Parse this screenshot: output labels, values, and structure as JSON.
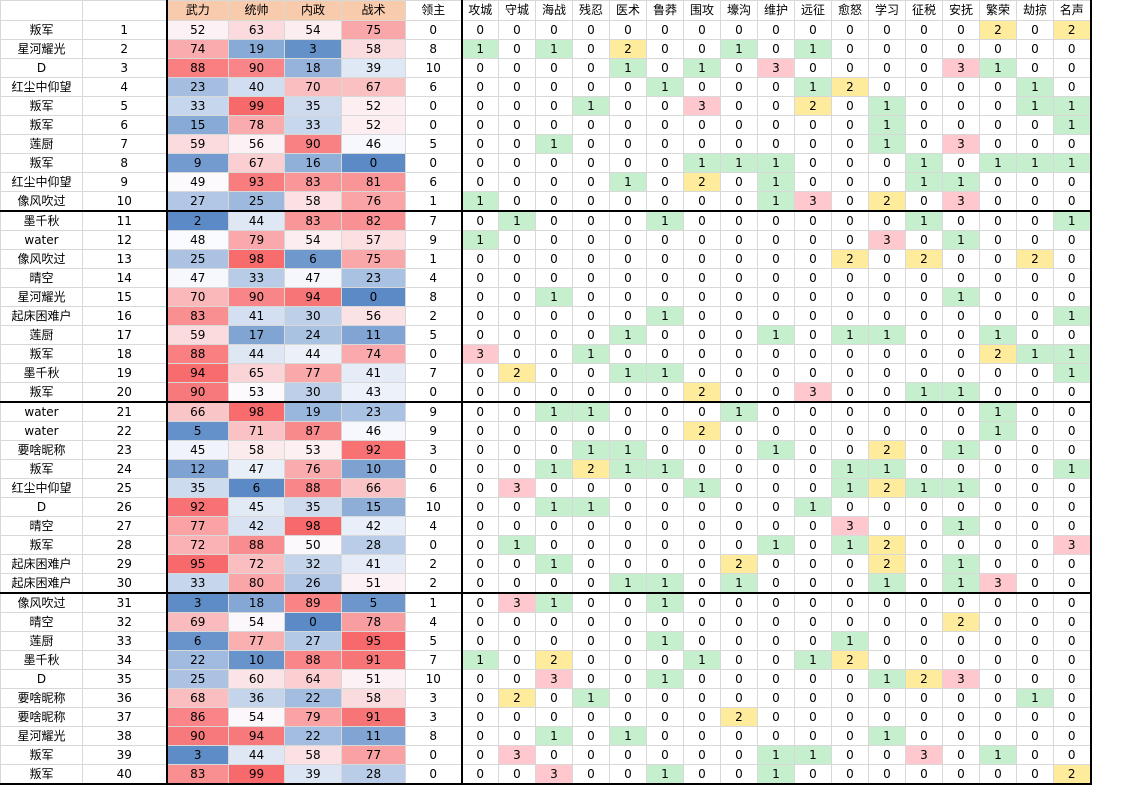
{
  "headers": {
    "name": "",
    "index": "",
    "stats": [
      "武力",
      "统帅",
      "内政",
      "战术",
      "领主"
    ],
    "skills": [
      "攻城",
      "守城",
      "海战",
      "残忍",
      "医术",
      "鲁莽",
      "围攻",
      "壕沟",
      "维护",
      "远征",
      "愈怒",
      "学习",
      "征税",
      "安抚",
      "繁荣",
      "劫掠",
      "名声"
    ]
  },
  "rows": [
    {
      "name": "叛军",
      "idx": 1,
      "stats": [
        52,
        63,
        54,
        75,
        0
      ],
      "skills": [
        0,
        0,
        0,
        0,
        0,
        0,
        0,
        0,
        0,
        0,
        0,
        0,
        0,
        0,
        2,
        0,
        2
      ]
    },
    {
      "name": "星河耀光",
      "idx": 2,
      "stats": [
        74,
        19,
        3,
        58,
        8
      ],
      "skills": [
        1,
        0,
        1,
        0,
        2,
        0,
        0,
        1,
        0,
        1,
        0,
        0,
        0,
        0,
        0,
        0,
        0
      ]
    },
    {
      "name": "D",
      "idx": 3,
      "stats": [
        88,
        90,
        18,
        39,
        10
      ],
      "skills": [
        0,
        0,
        0,
        0,
        1,
        0,
        1,
        0,
        3,
        0,
        0,
        0,
        0,
        3,
        1,
        0,
        0
      ]
    },
    {
      "name": "红尘中仰望",
      "idx": 4,
      "stats": [
        23,
        40,
        70,
        67,
        6
      ],
      "skills": [
        0,
        0,
        0,
        0,
        0,
        1,
        0,
        0,
        0,
        1,
        2,
        0,
        0,
        0,
        0,
        1,
        0
      ]
    },
    {
      "name": "叛军",
      "idx": 5,
      "stats": [
        33,
        99,
        35,
        52,
        0
      ],
      "skills": [
        0,
        0,
        0,
        1,
        0,
        0,
        3,
        0,
        0,
        2,
        0,
        1,
        0,
        0,
        0,
        1,
        1
      ]
    },
    {
      "name": "叛军",
      "idx": 6,
      "stats": [
        15,
        78,
        33,
        52,
        0
      ],
      "skills": [
        0,
        0,
        0,
        0,
        0,
        0,
        0,
        0,
        0,
        0,
        0,
        1,
        0,
        0,
        0,
        0,
        1
      ]
    },
    {
      "name": "莲厨",
      "idx": 7,
      "stats": [
        59,
        56,
        90,
        46,
        5
      ],
      "skills": [
        0,
        0,
        1,
        0,
        0,
        0,
        0,
        0,
        0,
        0,
        0,
        1,
        0,
        3,
        0,
        0,
        0
      ]
    },
    {
      "name": "叛军",
      "idx": 8,
      "stats": [
        9,
        67,
        16,
        0,
        0
      ],
      "skills": [
        0,
        0,
        0,
        0,
        0,
        0,
        1,
        1,
        1,
        0,
        0,
        0,
        1,
        0,
        1,
        1,
        1
      ]
    },
    {
      "name": "红尘中仰望",
      "idx": 9,
      "stats": [
        49,
        93,
        83,
        81,
        6
      ],
      "skills": [
        0,
        0,
        0,
        0,
        1,
        0,
        2,
        0,
        1,
        0,
        0,
        0,
        1,
        1,
        0,
        0,
        0
      ]
    },
    {
      "name": "像风吹过",
      "idx": 10,
      "stats": [
        27,
        25,
        58,
        76,
        1
      ],
      "skills": [
        1,
        0,
        0,
        0,
        0,
        0,
        0,
        0,
        1,
        3,
        0,
        2,
        0,
        3,
        0,
        0,
        0
      ]
    },
    {
      "name": "墨千秋",
      "idx": 11,
      "stats": [
        2,
        44,
        83,
        82,
        7
      ],
      "skills": [
        0,
        1,
        0,
        0,
        0,
        1,
        0,
        0,
        0,
        0,
        0,
        0,
        1,
        0,
        0,
        0,
        1
      ]
    },
    {
      "name": "water",
      "idx": 12,
      "stats": [
        48,
        79,
        54,
        57,
        9
      ],
      "skills": [
        1,
        0,
        0,
        0,
        0,
        0,
        0,
        0,
        0,
        0,
        0,
        3,
        0,
        1,
        0,
        0,
        0
      ]
    },
    {
      "name": "像风吹过",
      "idx": 13,
      "stats": [
        25,
        98,
        6,
        75,
        1
      ],
      "skills": [
        0,
        0,
        0,
        0,
        0,
        0,
        0,
        0,
        0,
        0,
        2,
        0,
        2,
        0,
        0,
        2,
        0
      ]
    },
    {
      "name": "晴空",
      "idx": 14,
      "stats": [
        47,
        33,
        47,
        23,
        4
      ],
      "skills": [
        0,
        0,
        0,
        0,
        0,
        0,
        0,
        0,
        0,
        0,
        0,
        0,
        0,
        0,
        0,
        0,
        0
      ]
    },
    {
      "name": "星河耀光",
      "idx": 15,
      "stats": [
        70,
        90,
        94,
        0,
        8
      ],
      "skills": [
        0,
        0,
        1,
        0,
        0,
        0,
        0,
        0,
        0,
        0,
        0,
        0,
        0,
        1,
        0,
        0,
        0
      ]
    },
    {
      "name": "起床困难户",
      "idx": 16,
      "stats": [
        83,
        41,
        30,
        56,
        2
      ],
      "skills": [
        0,
        0,
        0,
        0,
        0,
        1,
        0,
        0,
        0,
        0,
        0,
        0,
        0,
        0,
        0,
        0,
        1
      ]
    },
    {
      "name": "莲厨",
      "idx": 17,
      "stats": [
        59,
        17,
        24,
        11,
        5
      ],
      "skills": [
        0,
        0,
        0,
        0,
        1,
        0,
        0,
        0,
        1,
        0,
        1,
        1,
        0,
        0,
        1,
        0,
        0
      ]
    },
    {
      "name": "叛军",
      "idx": 18,
      "stats": [
        88,
        44,
        44,
        74,
        0
      ],
      "skills": [
        3,
        0,
        0,
        1,
        0,
        0,
        0,
        0,
        0,
        0,
        0,
        0,
        0,
        0,
        2,
        1,
        1
      ]
    },
    {
      "name": "墨千秋",
      "idx": 19,
      "stats": [
        94,
        65,
        77,
        41,
        7
      ],
      "skills": [
        0,
        2,
        0,
        0,
        1,
        1,
        0,
        0,
        0,
        0,
        0,
        0,
        0,
        0,
        0,
        0,
        1
      ]
    },
    {
      "name": "叛军",
      "idx": 20,
      "stats": [
        90,
        53,
        30,
        43,
        0
      ],
      "skills": [
        0,
        0,
        0,
        0,
        0,
        0,
        2,
        0,
        0,
        3,
        0,
        0,
        1,
        1,
        0,
        0,
        0
      ]
    },
    {
      "name": "water",
      "idx": 21,
      "stats": [
        66,
        98,
        19,
        23,
        9
      ],
      "skills": [
        0,
        0,
        1,
        1,
        0,
        0,
        0,
        1,
        0,
        0,
        0,
        0,
        0,
        0,
        1,
        0,
        0
      ]
    },
    {
      "name": "water",
      "idx": 22,
      "stats": [
        5,
        71,
        87,
        46,
        9
      ],
      "skills": [
        0,
        0,
        0,
        0,
        0,
        0,
        2,
        0,
        0,
        0,
        0,
        0,
        0,
        0,
        1,
        0,
        0
      ]
    },
    {
      "name": "要啥昵称",
      "idx": 23,
      "stats": [
        45,
        58,
        53,
        92,
        3
      ],
      "skills": [
        0,
        0,
        0,
        1,
        1,
        0,
        0,
        0,
        1,
        0,
        0,
        2,
        0,
        1,
        0,
        0,
        0
      ]
    },
    {
      "name": "叛军",
      "idx": 24,
      "stats": [
        12,
        47,
        76,
        10,
        0
      ],
      "skills": [
        0,
        0,
        1,
        2,
        1,
        1,
        0,
        0,
        0,
        0,
        1,
        1,
        0,
        0,
        0,
        0,
        1
      ]
    },
    {
      "name": "红尘中仰望",
      "idx": 25,
      "stats": [
        35,
        6,
        88,
        66,
        6
      ],
      "skills": [
        0,
        3,
        0,
        0,
        0,
        0,
        1,
        0,
        0,
        0,
        1,
        2,
        1,
        1,
        0,
        0,
        0
      ]
    },
    {
      "name": "D",
      "idx": 26,
      "stats": [
        92,
        45,
        35,
        15,
        10
      ],
      "skills": [
        0,
        0,
        1,
        1,
        0,
        0,
        0,
        0,
        0,
        1,
        0,
        0,
        0,
        0,
        0,
        0,
        0
      ]
    },
    {
      "name": "晴空",
      "idx": 27,
      "stats": [
        77,
        42,
        98,
        42,
        4
      ],
      "skills": [
        0,
        0,
        0,
        0,
        0,
        0,
        0,
        0,
        0,
        0,
        3,
        0,
        0,
        1,
        0,
        0,
        0
      ]
    },
    {
      "name": "叛军",
      "idx": 28,
      "stats": [
        72,
        88,
        50,
        28,
        0
      ],
      "skills": [
        0,
        1,
        0,
        0,
        0,
        0,
        0,
        0,
        1,
        0,
        1,
        2,
        0,
        0,
        0,
        0,
        3
      ]
    },
    {
      "name": "起床困难户",
      "idx": 29,
      "stats": [
        95,
        72,
        32,
        41,
        2
      ],
      "skills": [
        0,
        0,
        1,
        0,
        0,
        0,
        0,
        2,
        0,
        0,
        0,
        2,
        0,
        1,
        0,
        0,
        0
      ]
    },
    {
      "name": "起床困难户",
      "idx": 30,
      "stats": [
        33,
        80,
        26,
        51,
        2
      ],
      "skills": [
        0,
        0,
        0,
        0,
        1,
        1,
        0,
        1,
        0,
        0,
        0,
        1,
        0,
        1,
        3,
        0,
        0
      ]
    },
    {
      "name": "像风吹过",
      "idx": 31,
      "stats": [
        3,
        18,
        89,
        5,
        1
      ],
      "skills": [
        0,
        3,
        1,
        0,
        0,
        1,
        0,
        0,
        0,
        0,
        0,
        0,
        0,
        0,
        0,
        0,
        0
      ]
    },
    {
      "name": "晴空",
      "idx": 32,
      "stats": [
        69,
        54,
        0,
        78,
        4
      ],
      "skills": [
        0,
        0,
        0,
        0,
        0,
        0,
        0,
        0,
        0,
        0,
        0,
        0,
        0,
        2,
        0,
        0,
        0
      ]
    },
    {
      "name": "莲厨",
      "idx": 33,
      "stats": [
        6,
        77,
        27,
        95,
        5
      ],
      "skills": [
        0,
        0,
        0,
        0,
        0,
        1,
        0,
        0,
        0,
        0,
        1,
        0,
        0,
        0,
        0,
        0,
        0
      ]
    },
    {
      "name": "墨千秋",
      "idx": 34,
      "stats": [
        22,
        10,
        88,
        91,
        7
      ],
      "skills": [
        1,
        0,
        2,
        0,
        0,
        0,
        1,
        0,
        0,
        1,
        2,
        0,
        0,
        0,
        0,
        0,
        0
      ]
    },
    {
      "name": "D",
      "idx": 35,
      "stats": [
        25,
        60,
        64,
        51,
        10
      ],
      "skills": [
        0,
        0,
        3,
        0,
        0,
        1,
        0,
        0,
        0,
        0,
        0,
        1,
        2,
        3,
        0,
        0,
        0
      ]
    },
    {
      "name": "要啥昵称",
      "idx": 36,
      "stats": [
        68,
        36,
        22,
        58,
        3
      ],
      "skills": [
        0,
        2,
        0,
        1,
        0,
        0,
        0,
        0,
        0,
        0,
        0,
        0,
        0,
        0,
        0,
        1,
        0
      ]
    },
    {
      "name": "要啥昵称",
      "idx": 37,
      "stats": [
        86,
        54,
        79,
        91,
        3
      ],
      "skills": [
        0,
        0,
        0,
        0,
        0,
        0,
        0,
        2,
        0,
        0,
        0,
        0,
        0,
        0,
        0,
        0,
        0
      ]
    },
    {
      "name": "星河耀光",
      "idx": 38,
      "stats": [
        90,
        94,
        22,
        11,
        8
      ],
      "skills": [
        0,
        0,
        1,
        0,
        1,
        0,
        0,
        0,
        0,
        0,
        0,
        1,
        0,
        0,
        0,
        0,
        0
      ]
    },
    {
      "name": "叛军",
      "idx": 39,
      "stats": [
        3,
        44,
        58,
        77,
        0
      ],
      "skills": [
        0,
        3,
        0,
        0,
        0,
        0,
        0,
        0,
        1,
        1,
        0,
        0,
        3,
        0,
        1,
        0,
        0
      ]
    },
    {
      "name": "叛军",
      "idx": 40,
      "stats": [
        83,
        99,
        39,
        28,
        0
      ],
      "skills": [
        0,
        0,
        3,
        0,
        0,
        1,
        0,
        0,
        1,
        0,
        0,
        0,
        0,
        0,
        0,
        0,
        2
      ]
    }
  ]
}
